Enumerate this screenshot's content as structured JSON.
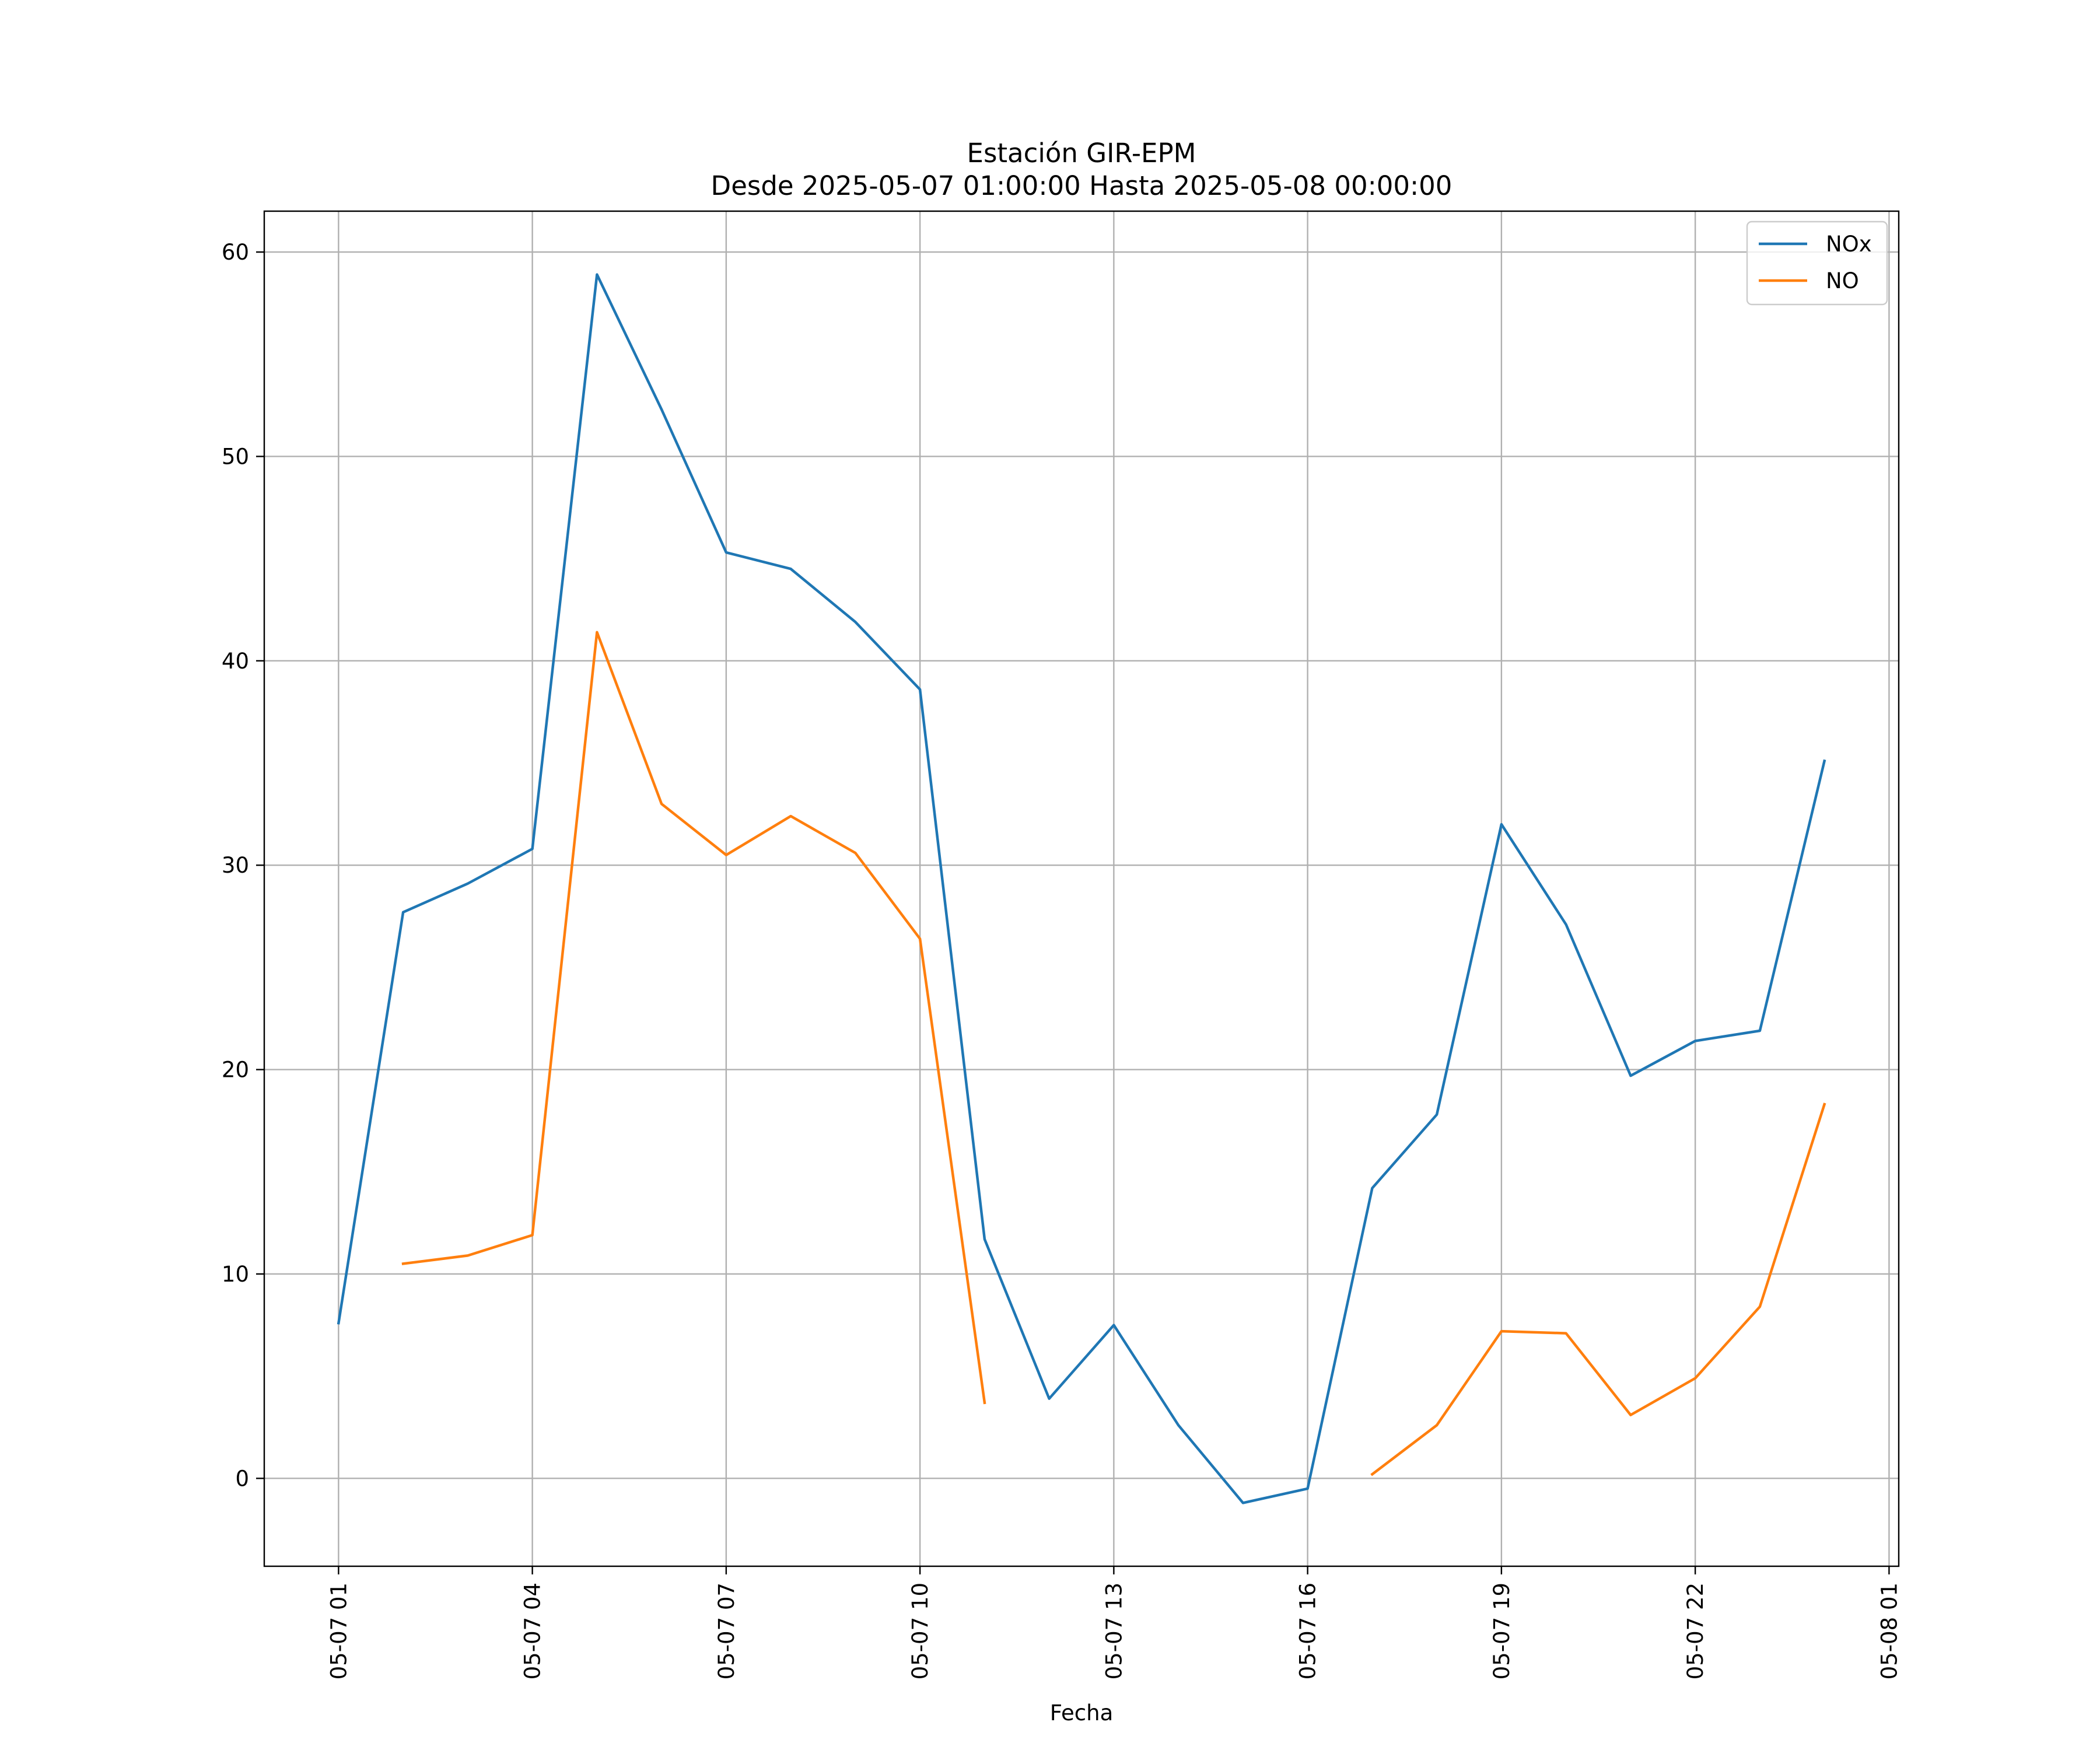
{
  "chart_data": {
    "type": "line",
    "title": [
      "Estación GIR-EPM",
      "Desde 2025-05-07 01:00:00 Hasta 2025-05-08 00:00:00"
    ],
    "xlabel": "Fecha",
    "ylabel": "",
    "x_kind": "datetime",
    "x": [
      "2025-05-07 01:00",
      "2025-05-07 02:00",
      "2025-05-07 03:00",
      "2025-05-07 04:00",
      "2025-05-07 05:00",
      "2025-05-07 06:00",
      "2025-05-07 07:00",
      "2025-05-07 08:00",
      "2025-05-07 09:00",
      "2025-05-07 10:00",
      "2025-05-07 11:00",
      "2025-05-07 12:00",
      "2025-05-07 13:00",
      "2025-05-07 14:00",
      "2025-05-07 15:00",
      "2025-05-07 16:00",
      "2025-05-07 17:00",
      "2025-05-07 18:00",
      "2025-05-07 19:00",
      "2025-05-07 20:00",
      "2025-05-07 21:00",
      "2025-05-07 22:00",
      "2025-05-07 23:00",
      "2025-05-08 00:00"
    ],
    "xlim": [
      "2025-05-06 23:51",
      "2025-05-08 01:09"
    ],
    "ylim": [
      -4.3,
      62
    ],
    "yticks": [
      0,
      10,
      20,
      30,
      40,
      50,
      60
    ],
    "xticks": [
      "2025-05-07 01:00",
      "2025-05-07 04:00",
      "2025-05-07 07:00",
      "2025-05-07 10:00",
      "2025-05-07 13:00",
      "2025-05-07 16:00",
      "2025-05-07 19:00",
      "2025-05-07 22:00",
      "2025-05-08 01:00"
    ],
    "xtick_labels": [
      "05-07 01",
      "05-07 04",
      "05-07 07",
      "05-07 10",
      "05-07 13",
      "05-07 16",
      "05-07 19",
      "05-07 22",
      "05-08 01"
    ],
    "grid": true,
    "legend_position": "top-right",
    "series": [
      {
        "name": "NOx",
        "color": "#1f77b4",
        "values": [
          7.6,
          27.7,
          29.1,
          30.8,
          58.9,
          52.3,
          45.3,
          44.5,
          41.9,
          38.6,
          11.7,
          3.9,
          7.5,
          2.6,
          -1.2,
          -0.5,
          14.2,
          17.8,
          32.0,
          27.1,
          19.7,
          21.4,
          21.9,
          35.1
        ]
      },
      {
        "name": "NO",
        "color": "#ff7f0e",
        "values": [
          null,
          10.5,
          10.9,
          11.9,
          41.4,
          33.0,
          30.5,
          32.4,
          30.6,
          26.4,
          3.7,
          null,
          null,
          null,
          null,
          null,
          0.2,
          2.6,
          7.2,
          7.1,
          3.1,
          4.9,
          8.4,
          18.3
        ]
      }
    ]
  }
}
